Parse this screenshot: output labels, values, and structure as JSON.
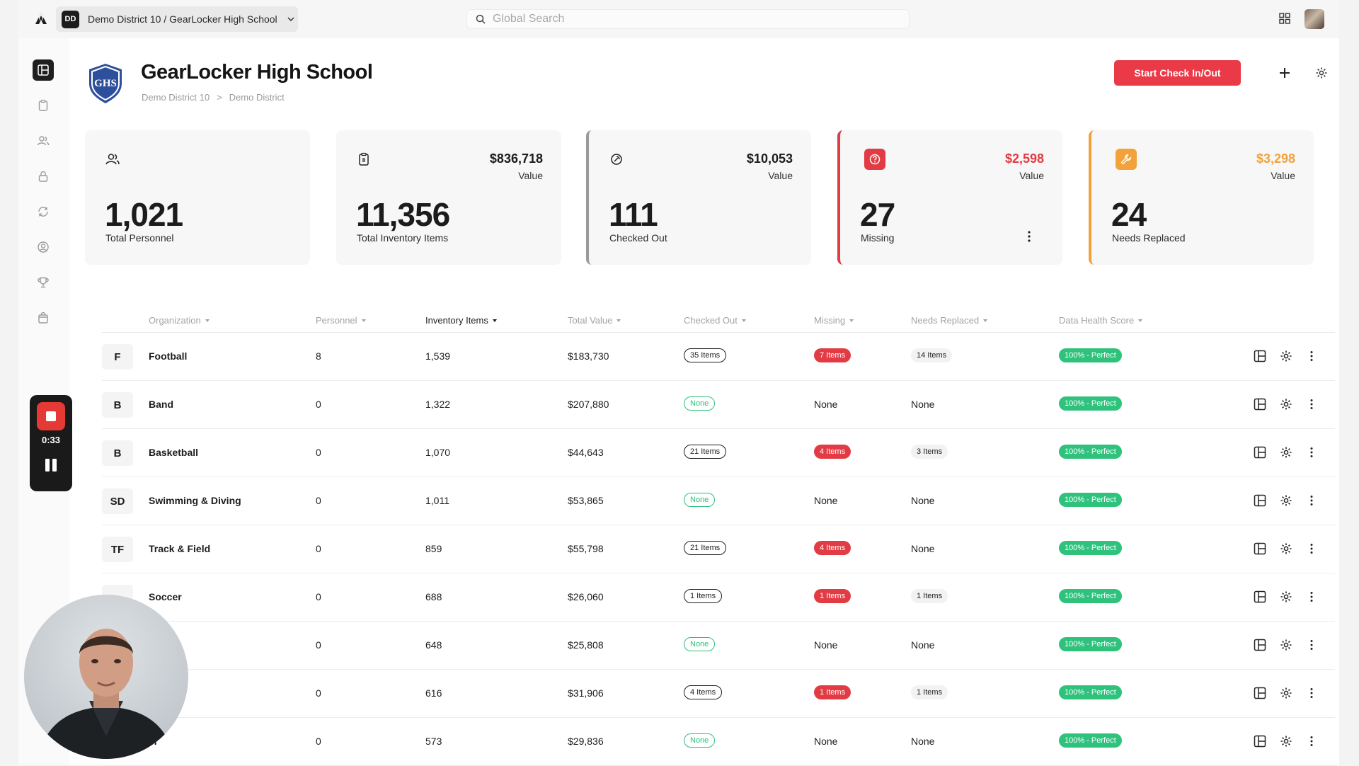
{
  "topbar": {
    "district_badge": "DD",
    "district_label": "Demo District 10 / GearLocker High School",
    "search_placeholder": "Global Search"
  },
  "recorder": {
    "time": "0:33"
  },
  "header": {
    "title": "GearLocker High School",
    "breadcrumb": [
      "Demo District 10",
      ">",
      "Demo District"
    ],
    "primary_button": "Start Check In/Out"
  },
  "stats": [
    {
      "number": "1,021",
      "label": "Total Personnel",
      "value": "",
      "value_label": ""
    },
    {
      "number": "11,356",
      "label": "Total Inventory Items",
      "value": "$836,718",
      "value_label": "Value"
    },
    {
      "number": "111",
      "label": "Checked Out",
      "value": "$10,053",
      "value_label": "Value"
    },
    {
      "number": "27",
      "label": "Missing",
      "value": "$2,598",
      "value_label": "Value"
    },
    {
      "number": "24",
      "label": "Needs Replaced",
      "value": "$3,298",
      "value_label": "Value"
    }
  ],
  "colors": {
    "accent": "#ea3a48",
    "missing": "#e23b44",
    "needs_replaced": "#f2a23a",
    "health": "#2fc27c"
  },
  "table": {
    "columns": [
      "Organization",
      "Personnel",
      "Inventory Items",
      "Total Value",
      "Checked Out",
      "Missing",
      "Needs Replaced",
      "Data Health Score"
    ],
    "rows": [
      {
        "initials": "F",
        "name": "Football",
        "personnel": "8",
        "items": "1,539",
        "value": "$183,730",
        "checked_out": "35 Items",
        "missing": "7 Items",
        "needs": "14 Items",
        "health": "100% - Perfect"
      },
      {
        "initials": "B",
        "name": "Band",
        "personnel": "0",
        "items": "1,322",
        "value": "$207,880",
        "checked_out": "None",
        "missing": "None",
        "needs": "None",
        "health": "100% - Perfect"
      },
      {
        "initials": "B",
        "name": "Basketball",
        "personnel": "0",
        "items": "1,070",
        "value": "$44,643",
        "checked_out": "21 Items",
        "missing": "4 Items",
        "needs": "3 Items",
        "health": "100% - Perfect"
      },
      {
        "initials": "SD",
        "name": "Swimming & Diving",
        "personnel": "0",
        "items": "1,011",
        "value": "$53,865",
        "checked_out": "None",
        "missing": "None",
        "needs": "None",
        "health": "100% - Perfect"
      },
      {
        "initials": "TF",
        "name": "Track & Field",
        "personnel": "0",
        "items": "859",
        "value": "$55,798",
        "checked_out": "21 Items",
        "missing": "4 Items",
        "needs": "None",
        "health": "100% - Perfect"
      },
      {
        "initials": "",
        "name": "Soccer",
        "personnel": "0",
        "items": "688",
        "value": "$26,060",
        "checked_out": "1 Items",
        "missing": "1 Items",
        "needs": "1 Items",
        "health": "100% - Perfect"
      },
      {
        "initials": "",
        "name": "",
        "personnel": "0",
        "items": "648",
        "value": "$25,808",
        "checked_out": "None",
        "missing": "None",
        "needs": "None",
        "health": "100% - Perfect"
      },
      {
        "initials": "",
        "name": "",
        "personnel": "0",
        "items": "616",
        "value": "$31,906",
        "checked_out": "4 Items",
        "missing": "1 Items",
        "needs": "1 Items",
        "health": "100% - Perfect"
      },
      {
        "initials": "",
        "name": "er",
        "personnel": "0",
        "items": "573",
        "value": "$29,836",
        "checked_out": "None",
        "missing": "None",
        "needs": "None",
        "health": "100% - Perfect"
      }
    ]
  }
}
